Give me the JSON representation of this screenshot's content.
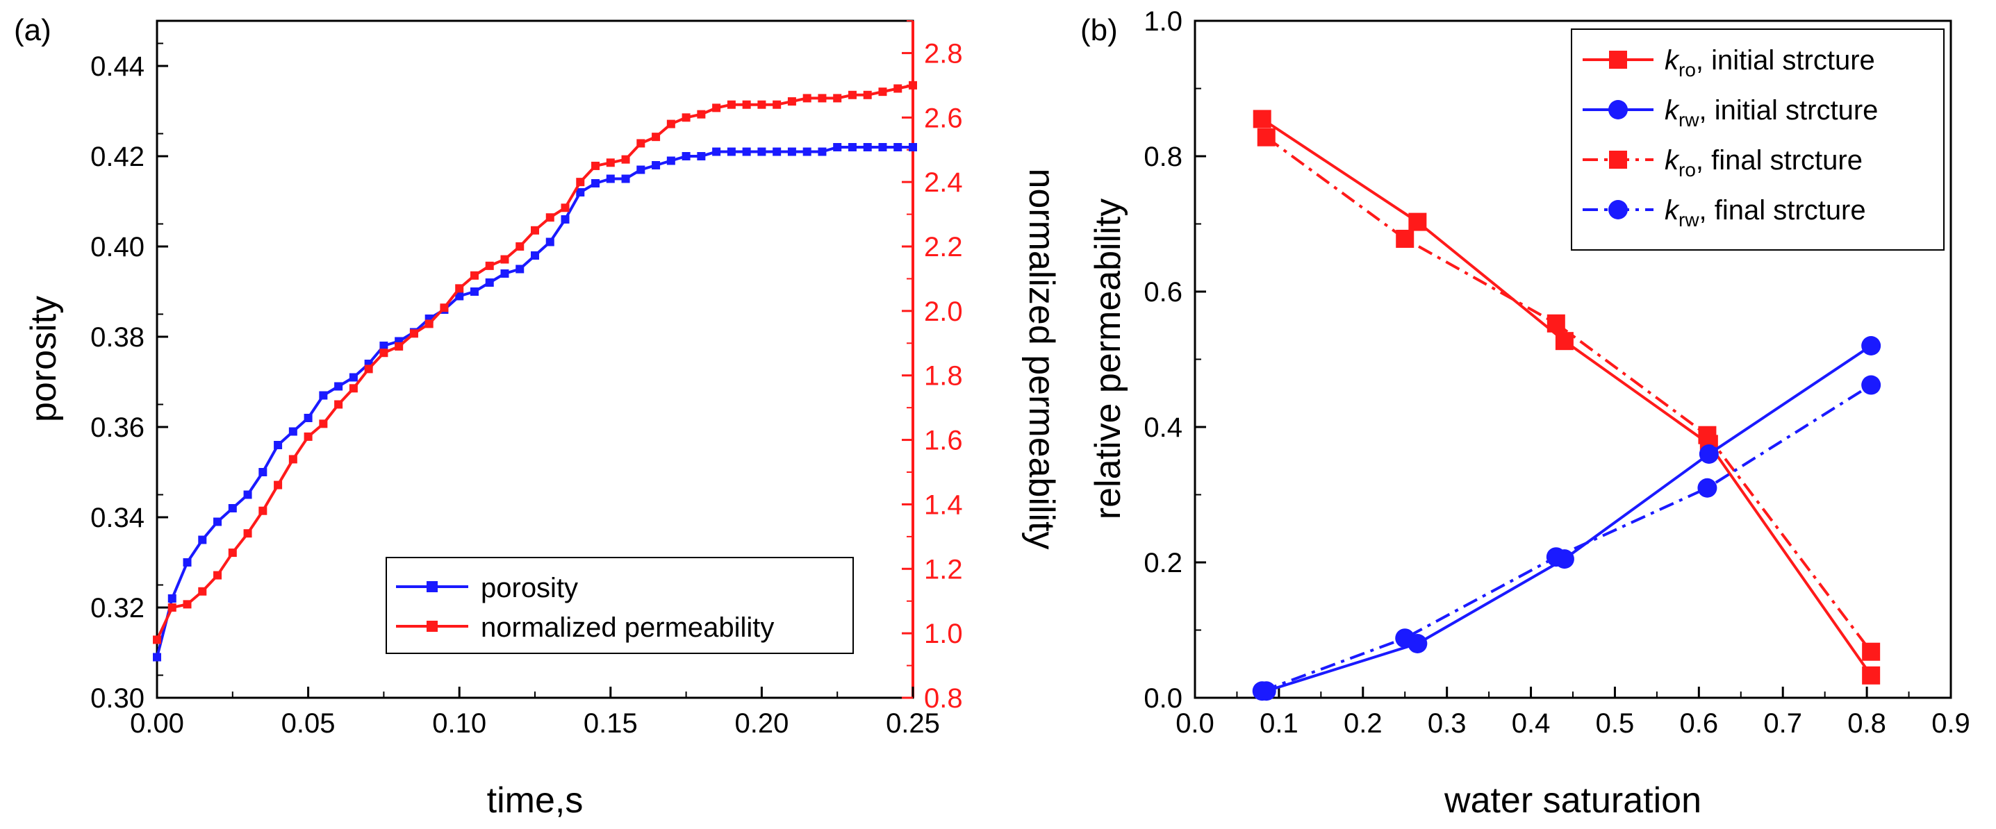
{
  "chart_data": [
    {
      "panel_label": "(a)",
      "type": "line",
      "xlabel": "time,s",
      "ylabel_left": "porosity",
      "ylabel_right": "normalized permeability",
      "xlim": [
        0,
        0.25
      ],
      "ylim_left": [
        0.3,
        0.45
      ],
      "ylim_right": [
        0.8,
        2.9
      ],
      "xticks": [
        "0.00",
        "0.05",
        "0.10",
        "0.15",
        "0.20",
        "0.25"
      ],
      "yticks_left": [
        "0.30",
        "0.32",
        "0.34",
        "0.36",
        "0.38",
        "0.40",
        "0.42",
        "0.44"
      ],
      "yticks_right": [
        "0.8",
        "1.0",
        "1.2",
        "1.4",
        "1.6",
        "1.8",
        "2.0",
        "2.2",
        "2.4",
        "2.6",
        "2.8"
      ],
      "legend": [
        "porosity",
        "normalized permeability"
      ],
      "legend_position": "bottom-right",
      "series": [
        {
          "name": "porosity",
          "axis": "left",
          "color": "#1a1aff",
          "x": [
            0.0,
            0.005,
            0.01,
            0.015,
            0.02,
            0.025,
            0.03,
            0.035,
            0.04,
            0.045,
            0.05,
            0.055,
            0.06,
            0.065,
            0.07,
            0.075,
            0.08,
            0.085,
            0.09,
            0.095,
            0.1,
            0.105,
            0.11,
            0.115,
            0.12,
            0.125,
            0.13,
            0.135,
            0.14,
            0.145,
            0.15,
            0.155,
            0.16,
            0.165,
            0.17,
            0.175,
            0.18,
            0.185,
            0.19,
            0.195,
            0.2,
            0.205,
            0.21,
            0.215,
            0.22,
            0.225,
            0.23,
            0.235,
            0.24,
            0.245,
            0.25
          ],
          "y": [
            0.309,
            0.322,
            0.33,
            0.335,
            0.339,
            0.342,
            0.345,
            0.35,
            0.356,
            0.359,
            0.362,
            0.367,
            0.369,
            0.371,
            0.374,
            0.378,
            0.379,
            0.381,
            0.384,
            0.386,
            0.389,
            0.39,
            0.392,
            0.394,
            0.395,
            0.398,
            0.401,
            0.406,
            0.412,
            0.414,
            0.415,
            0.415,
            0.417,
            0.418,
            0.419,
            0.42,
            0.42,
            0.421,
            0.421,
            0.421,
            0.421,
            0.421,
            0.421,
            0.421,
            0.421,
            0.422,
            0.422,
            0.422,
            0.422,
            0.422,
            0.422
          ]
        },
        {
          "name": "normalized permeability",
          "axis": "right",
          "color": "#ff1a1a",
          "x": [
            0.0,
            0.005,
            0.01,
            0.015,
            0.02,
            0.025,
            0.03,
            0.035,
            0.04,
            0.045,
            0.05,
            0.055,
            0.06,
            0.065,
            0.07,
            0.075,
            0.08,
            0.085,
            0.09,
            0.095,
            0.1,
            0.105,
            0.11,
            0.115,
            0.12,
            0.125,
            0.13,
            0.135,
            0.14,
            0.145,
            0.15,
            0.155,
            0.16,
            0.165,
            0.17,
            0.175,
            0.18,
            0.185,
            0.19,
            0.195,
            0.2,
            0.205,
            0.21,
            0.215,
            0.22,
            0.225,
            0.23,
            0.235,
            0.24,
            0.245,
            0.25
          ],
          "y": [
            0.98,
            1.08,
            1.09,
            1.13,
            1.18,
            1.25,
            1.31,
            1.38,
            1.46,
            1.54,
            1.61,
            1.65,
            1.71,
            1.76,
            1.82,
            1.87,
            1.89,
            1.93,
            1.96,
            2.01,
            2.07,
            2.11,
            2.14,
            2.16,
            2.2,
            2.25,
            2.29,
            2.32,
            2.4,
            2.45,
            2.46,
            2.47,
            2.52,
            2.54,
            2.58,
            2.6,
            2.61,
            2.63,
            2.64,
            2.64,
            2.64,
            2.64,
            2.65,
            2.66,
            2.66,
            2.66,
            2.67,
            2.67,
            2.68,
            2.69,
            2.7
          ]
        }
      ]
    },
    {
      "panel_label": "(b)",
      "type": "line",
      "xlabel": "water saturation",
      "ylabel": "relative permeability",
      "xlim": [
        0.0,
        0.9
      ],
      "ylim": [
        0.0,
        1.0
      ],
      "xticks": [
        "0.0",
        "0.1",
        "0.2",
        "0.3",
        "0.4",
        "0.5",
        "0.6",
        "0.7",
        "0.8",
        "0.9"
      ],
      "yticks": [
        "0.0",
        "0.2",
        "0.4",
        "0.6",
        "0.8",
        "1.0"
      ],
      "legend_position": "top-right",
      "series": [
        {
          "name_main": "k",
          "name_sub": "ro",
          "name_rest": ", initial strcture",
          "color": "#ff1a1a",
          "marker": "square",
          "linestyle": "solid",
          "x": [
            0.08,
            0.265,
            0.44,
            0.612,
            0.805
          ],
          "y": [
            0.855,
            0.703,
            0.527,
            0.375,
            0.033
          ]
        },
        {
          "name_main": "k",
          "name_sub": "rw",
          "name_rest": ", initial strcture",
          "color": "#1a1aff",
          "marker": "circle",
          "linestyle": "solid",
          "x": [
            0.085,
            0.265,
            0.44,
            0.612,
            0.805
          ],
          "y": [
            0.01,
            0.08,
            0.205,
            0.36,
            0.52
          ]
        },
        {
          "name_main": "k",
          "name_sub": "ro",
          "name_rest": ", final strcture",
          "color": "#ff1a1a",
          "marker": "square",
          "linestyle": "dashdot",
          "x": [
            0.085,
            0.25,
            0.43,
            0.61,
            0.805
          ],
          "y": [
            0.828,
            0.678,
            0.553,
            0.388,
            0.068
          ]
        },
        {
          "name_main": "k",
          "name_sub": "rw",
          "name_rest": ", final strcture",
          "color": "#1a1aff",
          "marker": "circle",
          "linestyle": "dashdot",
          "x": [
            0.08,
            0.25,
            0.43,
            0.61,
            0.805
          ],
          "y": [
            0.01,
            0.088,
            0.208,
            0.31,
            0.462
          ]
        }
      ]
    }
  ]
}
